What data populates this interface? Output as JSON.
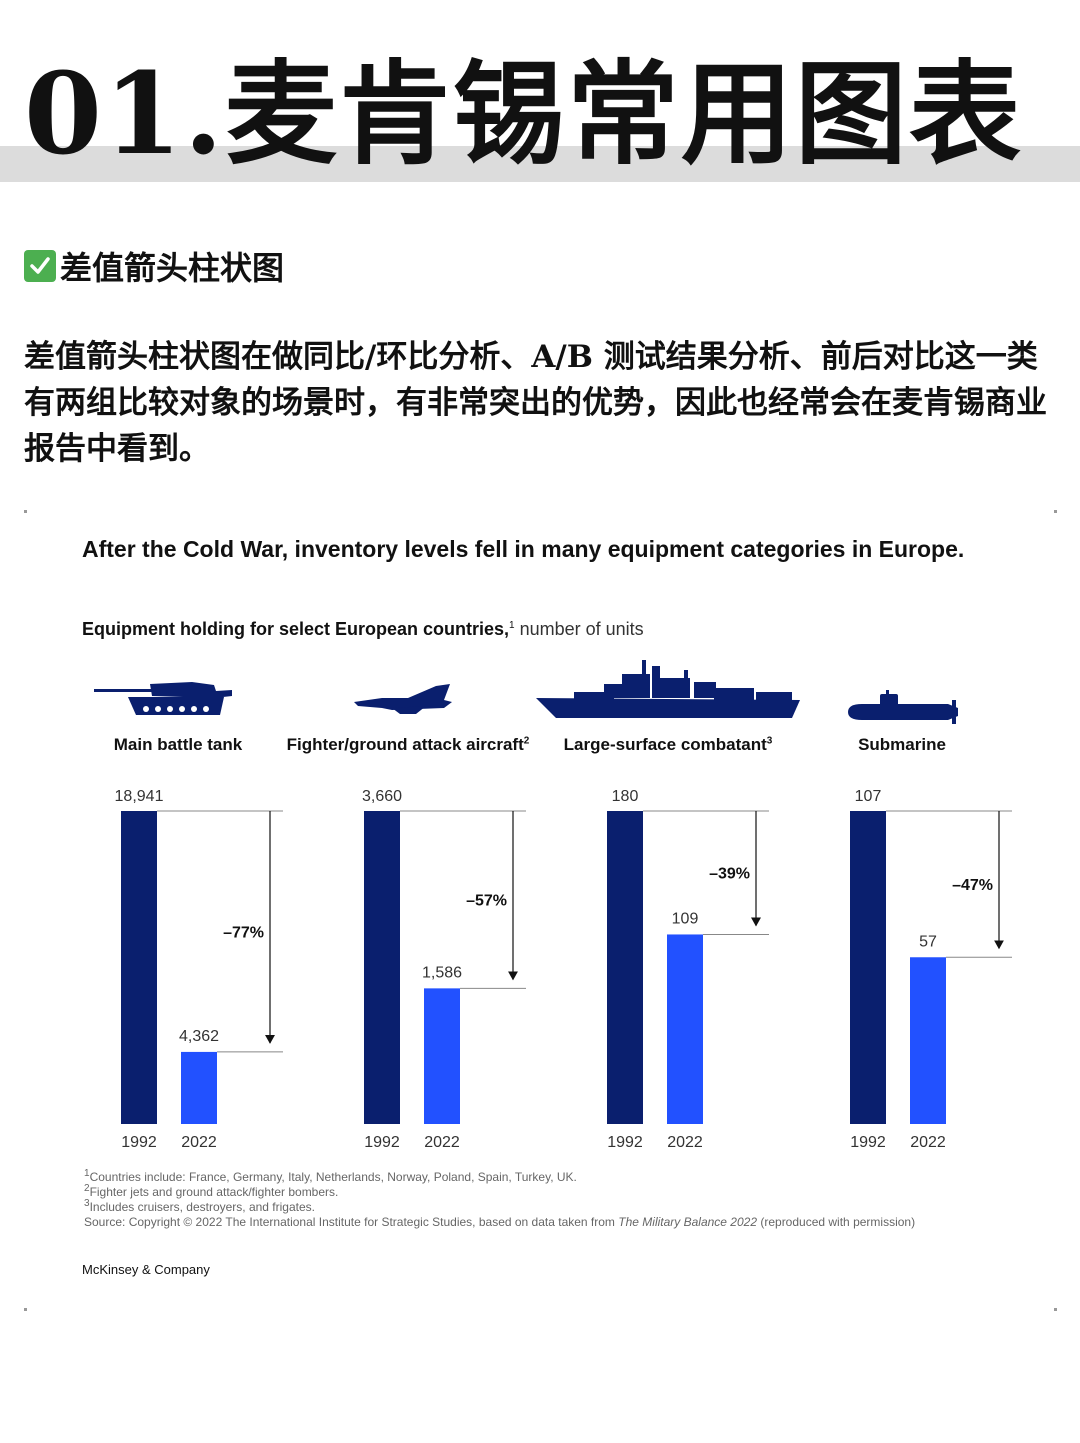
{
  "header": {
    "title": "01.麦肯锡常用图表"
  },
  "section": {
    "icon": "check-mark-icon",
    "heading": "差值箭头柱状图"
  },
  "intro": "差值箭头柱状图在做同比/环比分析、A/B 测试结果分析、前后对比这一类有两组比较对象的场景时，有非常突出的优势，因此也经常会在麦肯锡商业报告中看到。",
  "chart": {
    "title": "After the Cold War, inventory levels fell in many equipment categories in Europe.",
    "subtitle_bold": "Equipment holding for select European countries,",
    "subtitle_sup": "1",
    "subtitle_rest": " number of units",
    "categories": [
      {
        "label": "Main battle tank",
        "sup": "",
        "icon": "tank-icon"
      },
      {
        "label": "Fighter/ground attack aircraft",
        "sup": "2",
        "icon": "fighter-jet-icon"
      },
      {
        "label": "Large-surface combatant",
        "sup": "3",
        "icon": "warship-icon"
      },
      {
        "label": "Submarine",
        "sup": "",
        "icon": "submarine-icon"
      }
    ],
    "colors": {
      "y1992": "#0a1f6e",
      "y2022": "#2251ff",
      "text": "#333333"
    },
    "footnotes": {
      "n1": "Countries include: France, Germany, Italy, Netherlands, Norway, Poland, Spain, Turkey, UK.",
      "n2": "Fighter jets and ground attack/fighter bombers.",
      "n3": "Includes cruisers, destroyers, and frigates.",
      "source_prefix": "Source: Copyright © 2022 The International Institute for Strategic Studies, based on data taken from ",
      "source_italic": "The Military Balance 2022",
      "source_suffix": " (reproduced with permission)"
    },
    "brand": "McKinsey & Company"
  },
  "chart_data": {
    "type": "bar",
    "title": "After the Cold War, inventory levels fell in many equipment categories in Europe.",
    "subtitle": "Equipment holding for select European countries, number of units",
    "panels": [
      {
        "category": "Main battle tank",
        "years": [
          "1992",
          "2022"
        ],
        "values": [
          18941
        ],
        "labels": [
          "18,941",
          "4,362"
        ],
        "values_2022": 4362,
        "change_label": "–77%"
      },
      {
        "category": "Fighter/ground attack aircraft",
        "years": [
          "1992",
          "2022"
        ],
        "values": [
          3660
        ],
        "labels": [
          "3,660",
          "1,586"
        ],
        "values_2022": 1586,
        "change_label": "–57%"
      },
      {
        "category": "Large-surface combatant",
        "years": [
          "1992",
          "2022"
        ],
        "values": [
          180
        ],
        "labels": [
          "180",
          "109"
        ],
        "values_2022": 109,
        "change_label": "–39%"
      },
      {
        "category": "Submarine",
        "years": [
          "1992",
          "2022"
        ],
        "values": [
          107
        ],
        "labels": [
          "107",
          "57"
        ],
        "values_2022": 57,
        "change_label": "–47%"
      }
    ],
    "axis_note": "each panel scaled independently; 1992 bar = full height",
    "grid": false,
    "legend": "none"
  }
}
